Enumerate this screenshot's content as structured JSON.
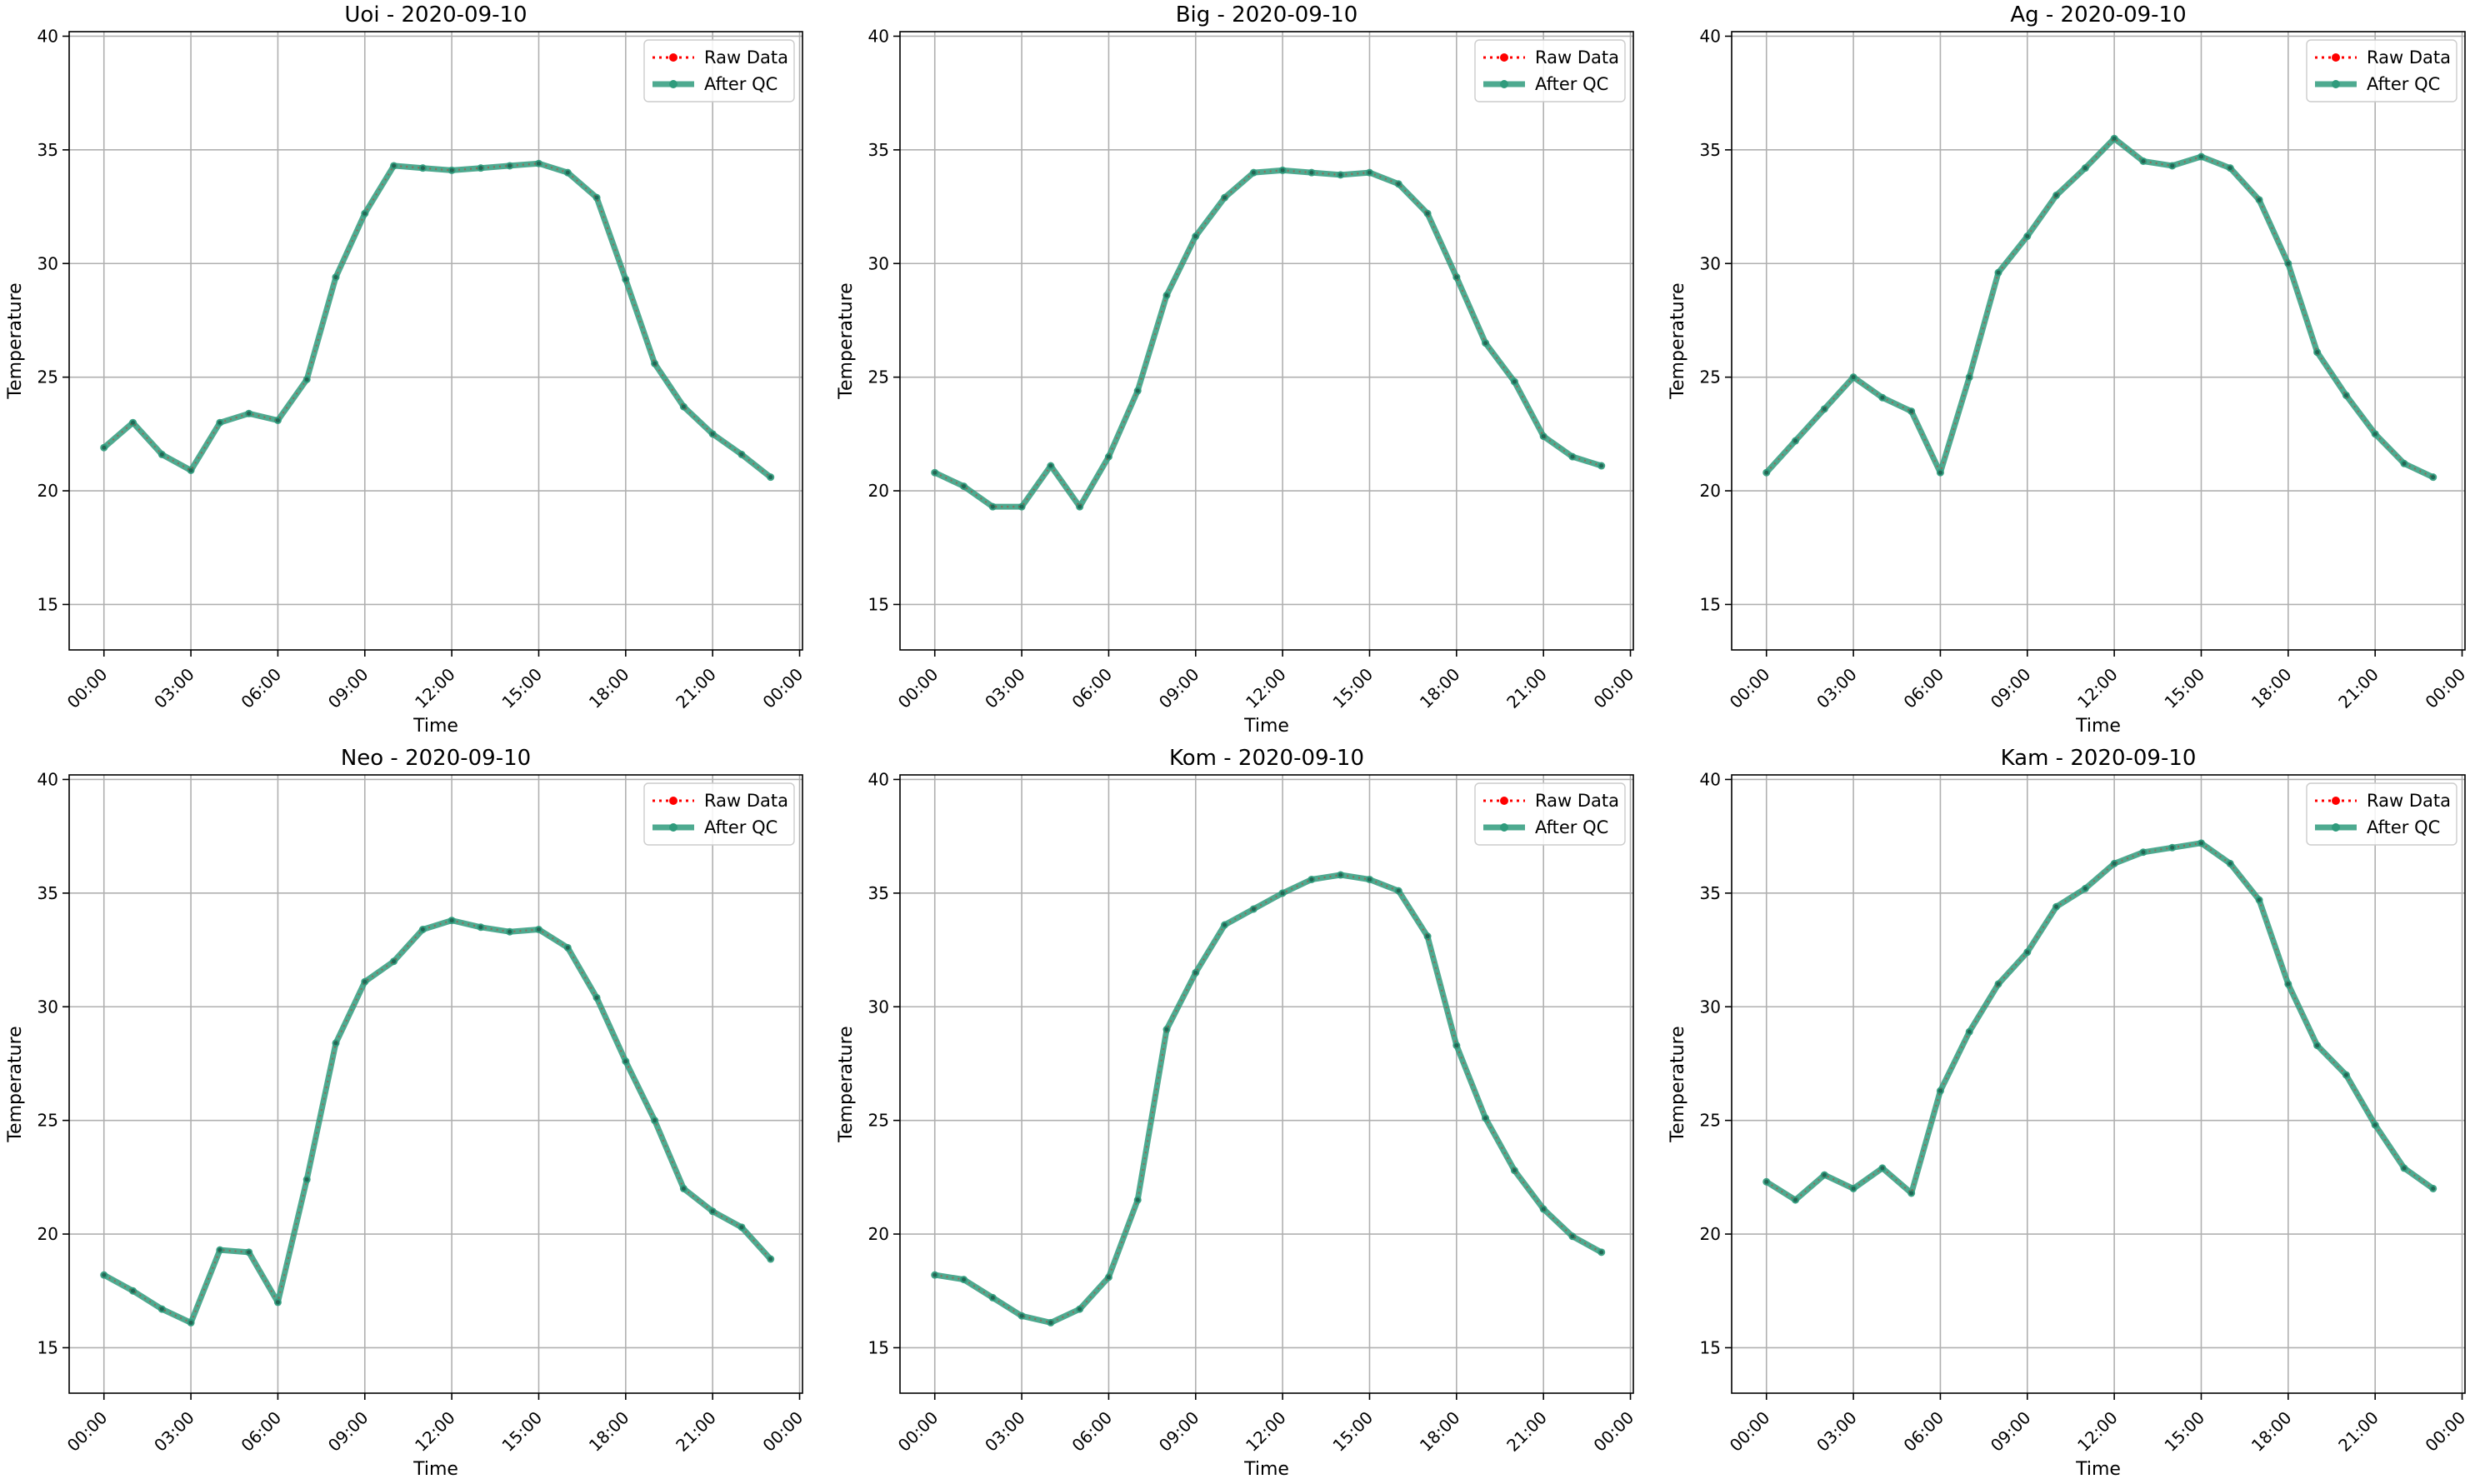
{
  "figure": {
    "background": "#ffffff",
    "raw_color": "#ff0000",
    "qc_color": "#2f9b7c",
    "grid_color": "#b0b0b0"
  },
  "chart_data": [
    {
      "type": "line",
      "title": "Uoi - 2020-09-10",
      "xlabel": "Time",
      "ylabel": "Temperature",
      "x_ticks": [
        "00:00",
        "03:00",
        "06:00",
        "09:00",
        "12:00",
        "15:00",
        "18:00",
        "21:00",
        "00:00"
      ],
      "y_ticks": [
        "15",
        "20",
        "25",
        "30",
        "35",
        "40"
      ],
      "ylim": [
        13,
        40.2
      ],
      "grid": true,
      "legend": "top-right",
      "x_hours": [
        0,
        1,
        2,
        3,
        4,
        5,
        6,
        7,
        8,
        9,
        10,
        11,
        12,
        13,
        14,
        15,
        16,
        17,
        18,
        19,
        20,
        21,
        22,
        23
      ],
      "series": [
        {
          "name": "Raw Data",
          "values": [
            21.9,
            23.0,
            21.6,
            20.9,
            23.0,
            23.4,
            23.1,
            24.9,
            29.4,
            32.2,
            34.3,
            34.2,
            34.1,
            34.2,
            34.3,
            34.4,
            34.0,
            32.9,
            29.3,
            25.6,
            23.7,
            22.5,
            21.6,
            20.6
          ]
        },
        {
          "name": "After QC",
          "values": [
            21.9,
            23.0,
            21.6,
            20.9,
            23.0,
            23.4,
            23.1,
            24.9,
            29.4,
            32.2,
            34.3,
            34.2,
            34.1,
            34.2,
            34.3,
            34.4,
            34.0,
            32.9,
            29.3,
            25.6,
            23.7,
            22.5,
            21.6,
            20.6
          ]
        }
      ]
    },
    {
      "type": "line",
      "title": "Big - 2020-09-10",
      "xlabel": "Time",
      "ylabel": "Temperature",
      "x_ticks": [
        "00:00",
        "03:00",
        "06:00",
        "09:00",
        "12:00",
        "15:00",
        "18:00",
        "21:00",
        "00:00"
      ],
      "y_ticks": [
        "15",
        "20",
        "25",
        "30",
        "35",
        "40"
      ],
      "ylim": [
        13,
        40.2
      ],
      "grid": true,
      "legend": "top-right",
      "x_hours": [
        0,
        1,
        2,
        3,
        4,
        5,
        6,
        7,
        8,
        9,
        10,
        11,
        12,
        13,
        14,
        15,
        16,
        17,
        18,
        19,
        20,
        21,
        22,
        23
      ],
      "series": [
        {
          "name": "Raw Data",
          "values": [
            20.8,
            20.2,
            19.3,
            19.3,
            21.1,
            19.3,
            21.5,
            24.4,
            28.6,
            31.2,
            32.9,
            34.0,
            34.1,
            34.0,
            33.9,
            34.0,
            33.5,
            32.2,
            29.4,
            26.5,
            24.8,
            22.4,
            21.5,
            21.1
          ]
        },
        {
          "name": "After QC",
          "values": [
            20.8,
            20.2,
            19.3,
            19.3,
            21.1,
            19.3,
            21.5,
            24.4,
            28.6,
            31.2,
            32.9,
            34.0,
            34.1,
            34.0,
            33.9,
            34.0,
            33.5,
            32.2,
            29.4,
            26.5,
            24.8,
            22.4,
            21.5,
            21.1
          ]
        }
      ]
    },
    {
      "type": "line",
      "title": "Ag - 2020-09-10",
      "xlabel": "Time",
      "ylabel": "Temperature",
      "x_ticks": [
        "00:00",
        "03:00",
        "06:00",
        "09:00",
        "12:00",
        "15:00",
        "18:00",
        "21:00",
        "00:00"
      ],
      "y_ticks": [
        "15",
        "20",
        "25",
        "30",
        "35",
        "40"
      ],
      "ylim": [
        13,
        40.2
      ],
      "grid": true,
      "legend": "top-right",
      "x_hours": [
        0,
        1,
        2,
        3,
        4,
        5,
        6,
        7,
        8,
        9,
        10,
        11,
        12,
        13,
        14,
        15,
        16,
        17,
        18,
        19,
        20,
        21,
        22,
        23
      ],
      "series": [
        {
          "name": "Raw Data",
          "values": [
            20.8,
            22.2,
            23.6,
            25.0,
            24.1,
            23.5,
            20.8,
            25.0,
            29.6,
            31.2,
            33.0,
            34.2,
            35.5,
            34.5,
            34.3,
            34.7,
            34.2,
            32.8,
            30.0,
            26.1,
            24.2,
            22.5,
            21.2,
            20.6
          ]
        },
        {
          "name": "After QC",
          "values": [
            20.8,
            22.2,
            23.6,
            25.0,
            24.1,
            23.5,
            20.8,
            25.0,
            29.6,
            31.2,
            33.0,
            34.2,
            35.5,
            34.5,
            34.3,
            34.7,
            34.2,
            32.8,
            30.0,
            26.1,
            24.2,
            22.5,
            21.2,
            20.6
          ]
        }
      ]
    },
    {
      "type": "line",
      "title": "Neo - 2020-09-10",
      "xlabel": "Time",
      "ylabel": "Temperature",
      "x_ticks": [
        "00:00",
        "03:00",
        "06:00",
        "09:00",
        "12:00",
        "15:00",
        "18:00",
        "21:00",
        "00:00"
      ],
      "y_ticks": [
        "15",
        "20",
        "25",
        "30",
        "35",
        "40"
      ],
      "ylim": [
        13,
        40.2
      ],
      "grid": true,
      "legend": "top-right",
      "x_hours": [
        0,
        1,
        2,
        3,
        4,
        5,
        6,
        7,
        8,
        9,
        10,
        11,
        12,
        13,
        14,
        15,
        16,
        17,
        18,
        19,
        20,
        21,
        22,
        23
      ],
      "series": [
        {
          "name": "Raw Data",
          "values": [
            18.2,
            17.5,
            16.7,
            16.1,
            19.3,
            19.2,
            17.0,
            22.4,
            28.4,
            31.1,
            32.0,
            33.4,
            33.8,
            33.5,
            33.3,
            33.4,
            32.6,
            30.4,
            27.6,
            25.0,
            22.0,
            21.0,
            20.3,
            18.9
          ]
        },
        {
          "name": "After QC",
          "values": [
            18.2,
            17.5,
            16.7,
            16.1,
            19.3,
            19.2,
            17.0,
            22.4,
            28.4,
            31.1,
            32.0,
            33.4,
            33.8,
            33.5,
            33.3,
            33.4,
            32.6,
            30.4,
            27.6,
            25.0,
            22.0,
            21.0,
            20.3,
            18.9
          ]
        }
      ]
    },
    {
      "type": "line",
      "title": "Kom - 2020-09-10",
      "xlabel": "Time",
      "ylabel": "Temperature",
      "x_ticks": [
        "00:00",
        "03:00",
        "06:00",
        "09:00",
        "12:00",
        "15:00",
        "18:00",
        "21:00",
        "00:00"
      ],
      "y_ticks": [
        "15",
        "20",
        "25",
        "30",
        "35",
        "40"
      ],
      "ylim": [
        13,
        40.2
      ],
      "grid": true,
      "legend": "top-right",
      "x_hours": [
        0,
        1,
        2,
        3,
        4,
        5,
        6,
        7,
        8,
        9,
        10,
        11,
        12,
        13,
        14,
        15,
        16,
        17,
        18,
        19,
        20,
        21,
        22,
        23
      ],
      "series": [
        {
          "name": "Raw Data",
          "values": [
            18.2,
            18.0,
            17.2,
            16.4,
            16.1,
            16.7,
            18.1,
            21.5,
            29.0,
            31.5,
            33.6,
            34.3,
            35.0,
            35.6,
            35.8,
            35.6,
            35.1,
            33.1,
            28.3,
            25.1,
            22.8,
            21.1,
            19.9,
            19.2
          ]
        },
        {
          "name": "After QC",
          "values": [
            18.2,
            18.0,
            17.2,
            16.4,
            16.1,
            16.7,
            18.1,
            21.5,
            29.0,
            31.5,
            33.6,
            34.3,
            35.0,
            35.6,
            35.8,
            35.6,
            35.1,
            33.1,
            28.3,
            25.1,
            22.8,
            21.1,
            19.9,
            19.2
          ]
        }
      ]
    },
    {
      "type": "line",
      "title": "Kam - 2020-09-10",
      "xlabel": "Time",
      "ylabel": "Temperature",
      "x_ticks": [
        "00:00",
        "03:00",
        "06:00",
        "09:00",
        "12:00",
        "15:00",
        "18:00",
        "21:00",
        "00:00"
      ],
      "y_ticks": [
        "15",
        "20",
        "25",
        "30",
        "35",
        "40"
      ],
      "ylim": [
        13,
        40.2
      ],
      "grid": true,
      "legend": "top-right",
      "x_hours": [
        0,
        1,
        2,
        3,
        4,
        5,
        6,
        7,
        8,
        9,
        10,
        11,
        12,
        13,
        14,
        15,
        16,
        17,
        18,
        19,
        20,
        21,
        22,
        23
      ],
      "series": [
        {
          "name": "Raw Data",
          "values": [
            22.3,
            21.5,
            22.6,
            22.0,
            22.9,
            21.8,
            26.3,
            28.9,
            31.0,
            32.4,
            34.4,
            35.2,
            36.3,
            36.8,
            37.0,
            37.2,
            36.3,
            34.7,
            31.0,
            28.3,
            27.0,
            24.8,
            22.9,
            22.0
          ]
        },
        {
          "name": "After QC",
          "values": [
            22.3,
            21.5,
            22.6,
            22.0,
            22.9,
            21.8,
            26.3,
            28.9,
            31.0,
            32.4,
            34.4,
            35.2,
            36.3,
            36.8,
            37.0,
            37.2,
            36.3,
            34.7,
            31.0,
            28.3,
            27.0,
            24.8,
            22.9,
            22.0
          ]
        }
      ]
    }
  ]
}
